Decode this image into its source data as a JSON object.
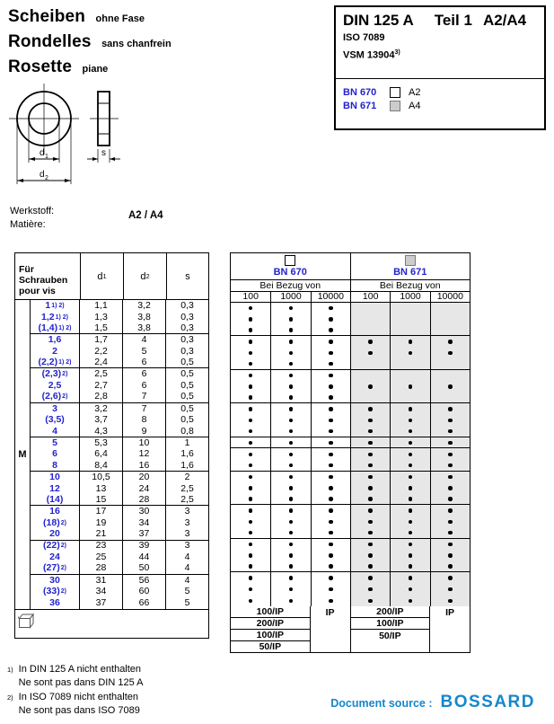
{
  "page": {
    "titles": [
      {
        "main": "Scheiben",
        "sub": "ohne Fase"
      },
      {
        "main": "Rondelles",
        "sub": "sans chanfrein"
      },
      {
        "main": "Rosette",
        "sub": "piane"
      }
    ],
    "standard_box": {
      "din": "DIN 125 A",
      "teil": "Teil 1",
      "grade": "A2/A4",
      "iso": "ISO 7089",
      "vsm": "VSM 13904",
      "vsm_sup": "3)",
      "legend": [
        {
          "bn": "BN 670",
          "material": "A2",
          "swatch": "#ffffff"
        },
        {
          "bn": "BN 671",
          "material": "A4",
          "swatch": "#cccccc"
        }
      ]
    },
    "drawing": {
      "d1_base": "d",
      "d1_sub": "1",
      "d2_base": "d",
      "d2_sub": "2",
      "s_label": "s"
    },
    "material": {
      "label_de": "Werkstoff:",
      "label_fr": "Matière:",
      "value": "A2 / A4"
    },
    "colors": {
      "link_blue": "#2323cd",
      "gray_cell": "#e7e7e7",
      "bossard_blue": "#1487cb"
    },
    "table": {
      "for_screws": [
        "Für",
        "Schrauben",
        "pour vis"
      ],
      "m_label": "M",
      "dim_cols": [
        {
          "base": "d",
          "sub": "1"
        },
        {
          "base": "d",
          "sub": "2"
        },
        {
          "base": "s",
          "sub": ""
        }
      ],
      "bn_groups": [
        {
          "bn": "BN 670",
          "swatch": "#ffffff",
          "bezug": "Bei Bezug von",
          "qty": [
            "100",
            "1000",
            "10000"
          ]
        },
        {
          "bn": "BN 671",
          "swatch": "#cccccc",
          "bezug": "Bei Bezug von",
          "qty": [
            "100",
            "1000",
            "10000"
          ]
        }
      ],
      "rows": [
        {
          "m": "1",
          "sup": "1) 2)",
          "d1": "1,1",
          "d2": "3,2",
          "s": "0,3",
          "b670": true,
          "b671": false,
          "gl": false,
          "gr": false
        },
        {
          "m": "1,2",
          "sup": "1) 2)",
          "d1": "1,3",
          "d2": "3,8",
          "s": "0,3",
          "b670": true,
          "b671": false,
          "gl": false,
          "gr": false
        },
        {
          "m": "(1,4)",
          "sup": "1) 2)",
          "d1": "1,5",
          "d2": "3,8",
          "s": "0,3",
          "b670": true,
          "b671": false,
          "gl": true,
          "gr": true
        },
        {
          "m": "1,6",
          "sup": "",
          "d1": "1,7",
          "d2": "4",
          "s": "0,3",
          "b670": true,
          "b671": true,
          "gl": false,
          "gr": false
        },
        {
          "m": "2",
          "sup": "",
          "d1": "2,2",
          "d2": "5",
          "s": "0,3",
          "b670": true,
          "b671": true,
          "gl": false,
          "gr": false
        },
        {
          "m": "(2,2)",
          "sup": "1) 2)",
          "d1": "2,4",
          "d2": "6",
          "s": "0,5",
          "b670": true,
          "b671": false,
          "gl": true,
          "gr": true
        },
        {
          "m": "(2,3)",
          "sup": "2)",
          "d1": "2,5",
          "d2": "6",
          "s": "0,5",
          "b670": true,
          "b671": false,
          "gl": false,
          "gr": false
        },
        {
          "m": "2,5",
          "sup": "",
          "d1": "2,7",
          "d2": "6",
          "s": "0,5",
          "b670": true,
          "b671": true,
          "gl": false,
          "gr": false
        },
        {
          "m": "(2,6)",
          "sup": "2)",
          "d1": "2,8",
          "d2": "7",
          "s": "0,5",
          "b670": true,
          "b671": false,
          "gl": true,
          "gr": true
        },
        {
          "m": "3",
          "sup": "",
          "d1": "3,2",
          "d2": "7",
          "s": "0,5",
          "b670": true,
          "b671": true,
          "gl": false,
          "gr": false
        },
        {
          "m": "(3,5)",
          "sup": "",
          "d1": "3,7",
          "d2": "8",
          "s": "0,5",
          "b670": true,
          "b671": true,
          "gl": false,
          "gr": false
        },
        {
          "m": "4",
          "sup": "",
          "d1": "4,3",
          "d2": "9",
          "s": "0,8",
          "b670": true,
          "b671": true,
          "gl": true,
          "gr": true
        },
        {
          "m": "5",
          "sup": "",
          "d1": "5,3",
          "d2": "10",
          "s": "1",
          "b670": true,
          "b671": true,
          "gl": false,
          "gr": true
        },
        {
          "m": "6",
          "sup": "",
          "d1": "6,4",
          "d2": "12",
          "s": "1,6",
          "b670": true,
          "b671": true,
          "gl": false,
          "gr": false
        },
        {
          "m": "8",
          "sup": "",
          "d1": "8,4",
          "d2": "16",
          "s": "1,6",
          "b670": true,
          "b671": true,
          "gl": true,
          "gr": true
        },
        {
          "m": "10",
          "sup": "",
          "d1": "10,5",
          "d2": "20",
          "s": "2",
          "b670": true,
          "b671": true,
          "gl": false,
          "gr": false
        },
        {
          "m": "12",
          "sup": "",
          "d1": "13",
          "d2": "24",
          "s": "2,5",
          "b670": true,
          "b671": true,
          "gl": false,
          "gr": false
        },
        {
          "m": "(14)",
          "sup": "",
          "d1": "15",
          "d2": "28",
          "s": "2,5",
          "b670": true,
          "b671": true,
          "gl": true,
          "gr": true
        },
        {
          "m": "16",
          "sup": "",
          "d1": "17",
          "d2": "30",
          "s": "3",
          "b670": true,
          "b671": true,
          "gl": false,
          "gr": false
        },
        {
          "m": "(18)",
          "sup": "2)",
          "d1": "19",
          "d2": "34",
          "s": "3",
          "b670": true,
          "b671": true,
          "gl": false,
          "gr": false
        },
        {
          "m": "20",
          "sup": "",
          "d1": "21",
          "d2": "37",
          "s": "3",
          "b670": true,
          "b671": true,
          "gl": true,
          "gr": true
        },
        {
          "m": "(22)",
          "sup": "2)",
          "d1": "23",
          "d2": "39",
          "s": "3",
          "b670": true,
          "b671": true,
          "gl": false,
          "gr": false
        },
        {
          "m": "24",
          "sup": "",
          "d1": "25",
          "d2": "44",
          "s": "4",
          "b670": true,
          "b671": true,
          "gl": false,
          "gr": false
        },
        {
          "m": "(27)",
          "sup": "2)",
          "d1": "28",
          "d2": "50",
          "s": "4",
          "b670": true,
          "b671": true,
          "gl": true,
          "gr": true
        },
        {
          "m": "30",
          "sup": "",
          "d1": "31",
          "d2": "56",
          "s": "4",
          "b670": true,
          "b671": true,
          "gl": false,
          "gr": false
        },
        {
          "m": "(33)",
          "sup": "2)",
          "d1": "34",
          "d2": "60",
          "s": "5",
          "b670": true,
          "b671": true,
          "gl": false,
          "gr": false
        },
        {
          "m": "36",
          "sup": "",
          "d1": "37",
          "d2": "66",
          "s": "5",
          "b670": true,
          "b671": true,
          "gl": true,
          "gr": true
        }
      ],
      "footer": {
        "bn670_pack": [
          "100/IP",
          "200/IP",
          "100/IP",
          "50/IP"
        ],
        "bn670_bulk": "IP",
        "bn671_pack": [
          "200/IP",
          "100/IP",
          "50/IP"
        ],
        "bn671_bulk": "IP"
      }
    },
    "footnotes": [
      {
        "sup": "1)",
        "line_de": "In DIN 125 A nicht enthalten",
        "line_fr": "Ne sont pas dans DIN 125 A"
      },
      {
        "sup": "2)",
        "line_de": "In ISO 7089 nicht enthalten",
        "line_fr": "Ne sont pas dans ISO 7089"
      }
    ],
    "doc_source": {
      "label": "Document source :",
      "brand": "BOSSARD"
    }
  }
}
